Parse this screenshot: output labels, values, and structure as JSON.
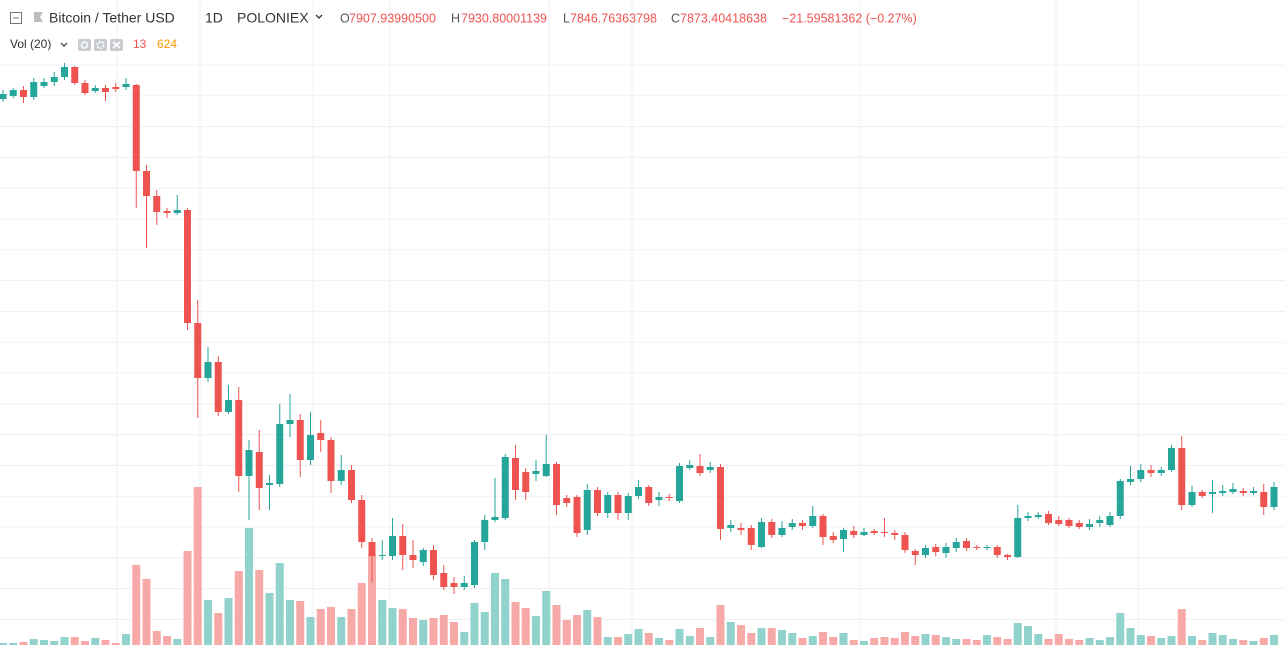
{
  "chart_data": {
    "type": "candlestick",
    "header": {
      "symbol": "Bitcoin / Tether USD",
      "interval": "1D",
      "exchange": "POLONIEX",
      "ohlc": [
        {
          "label": "O",
          "value": "7907.93990500"
        },
        {
          "label": "H",
          "value": "7930.80001139"
        },
        {
          "label": "L",
          "value": "7846.76363798"
        },
        {
          "label": "C",
          "value": "7873.40418638"
        }
      ],
      "change": "−21.59581362 (−0.27%)"
    },
    "volume_legend": {
      "label": "Vol (20)",
      "volume": "13",
      "ma": "624"
    },
    "ylim": [
      3875,
      19125
    ],
    "volume_ylim": [
      0,
      15250
    ],
    "up_color": "#26a69a",
    "down_color": "#ef5350",
    "volume_up_color": "#92d2cc",
    "volume_down_color": "#f7a9a7",
    "open": [
      17525,
      17600,
      17750,
      17575,
      17850,
      17950,
      18075,
      18325,
      17925,
      17725,
      17800,
      17825,
      17825,
      17875,
      15725,
      15100,
      14725,
      14675,
      14750,
      11925,
      10550,
      10950,
      9700,
      10000,
      8100,
      8700,
      7875,
      7900,
      9400,
      9500,
      8500,
      9175,
      9000,
      7975,
      8250,
      7500,
      6450,
      6100,
      6100,
      6600,
      6125,
      5950,
      6250,
      5675,
      5425,
      5325,
      5375,
      6450,
      7000,
      7050,
      8550,
      8200,
      8150,
      8100,
      8400,
      7550,
      7575,
      6750,
      7750,
      7175,
      7625,
      7175,
      7600,
      7825,
      7500,
      7575,
      7475,
      8300,
      8350,
      8250,
      8325,
      6800,
      6800,
      6800,
      6325,
      6950,
      6625,
      6825,
      6925,
      6850,
      7100,
      6600,
      6525,
      6725,
      6625,
      6725,
      6700,
      6675,
      6625,
      6225,
      6125,
      6325,
      6175,
      6300,
      6475,
      6325,
      6300,
      6325,
      6125,
      6075,
      7050,
      7075,
      7150,
      7000,
      7000,
      6925,
      6825,
      6925,
      6875,
      7100,
      7950,
      8025,
      8250,
      8175,
      8250,
      8800,
      7375,
      7700,
      7650,
      7675,
      7700,
      7725,
      7675,
      7700,
      7325
    ],
    "high": [
      17750,
      17800,
      17850,
      18050,
      18050,
      18200,
      18425,
      18350,
      18000,
      17875,
      17875,
      17925,
      18050,
      17900,
      15875,
      15250,
      14800,
      15125,
      14800,
      12500,
      11325,
      11100,
      10375,
      10325,
      9000,
      9250,
      8125,
      9900,
      10150,
      9650,
      9700,
      9500,
      9075,
      8625,
      8375,
      7625,
      6550,
      6500,
      7050,
      6900,
      6500,
      6300,
      6375,
      5875,
      5575,
      5600,
      6500,
      7125,
      8050,
      8650,
      8875,
      8300,
      8500,
      9125,
      8450,
      7625,
      7625,
      7900,
      7825,
      7700,
      7700,
      7675,
      8000,
      7875,
      7700,
      7650,
      8425,
      8500,
      8650,
      8450,
      8400,
      7000,
      6925,
      6875,
      7050,
      7025,
      6975,
      7025,
      7000,
      7350,
      7150,
      6700,
      6800,
      6850,
      6800,
      6775,
      7050,
      6750,
      6700,
      6275,
      6375,
      6400,
      6425,
      6550,
      6550,
      6375,
      6375,
      6375,
      6150,
      7375,
      7200,
      7200,
      7225,
      7100,
      7050,
      7000,
      7025,
      7100,
      7200,
      8025,
      8350,
      8400,
      8375,
      8325,
      8875,
      9100,
      7850,
      7750,
      8000,
      7875,
      7925,
      7800,
      7825,
      7900,
      7950
    ],
    "low": [
      17450,
      17550,
      17425,
      17500,
      17800,
      17850,
      18000,
      17875,
      17625,
      17675,
      17475,
      17700,
      17750,
      14800,
      13800,
      14375,
      14550,
      14625,
      11750,
      9550,
      10450,
      9600,
      9650,
      7700,
      7000,
      7250,
      7250,
      7825,
      9075,
      8075,
      8375,
      8700,
      7675,
      7875,
      7425,
      6300,
      5450,
      6000,
      6000,
      5750,
      5800,
      5850,
      5500,
      5250,
      5150,
      5250,
      5300,
      6250,
      6950,
      7000,
      7500,
      7500,
      7975,
      8075,
      7125,
      7325,
      6575,
      6625,
      7100,
      7050,
      7000,
      7000,
      7525,
      7350,
      7350,
      7475,
      7425,
      8250,
      8100,
      8175,
      6500,
      6700,
      6625,
      6250,
      6300,
      6550,
      6575,
      6750,
      6750,
      6800,
      6375,
      6425,
      6200,
      6550,
      6600,
      6625,
      6575,
      6500,
      6175,
      5875,
      6050,
      6100,
      6050,
      6200,
      6225,
      6250,
      6250,
      6050,
      6000,
      6050,
      6975,
      7025,
      6875,
      6850,
      6800,
      6775,
      6750,
      6825,
      6825,
      7025,
      7875,
      7950,
      8075,
      8100,
      8200,
      7250,
      7325,
      7550,
      7175,
      7600,
      7650,
      7600,
      7625,
      7125,
      7250
    ],
    "close": [
      17650,
      17750,
      17575,
      17950,
      17950,
      18075,
      18325,
      17925,
      17675,
      17800,
      17700,
      17775,
      17900,
      15725,
      15100,
      14700,
      14675,
      14750,
      11925,
      10550,
      10950,
      9700,
      10000,
      8100,
      8750,
      7800,
      7925,
      9400,
      9500,
      8500,
      9125,
      9000,
      7975,
      8250,
      7500,
      6450,
      6100,
      6125,
      6600,
      6125,
      6000,
      6250,
      5625,
      5325,
      5325,
      5425,
      6450,
      7000,
      7075,
      8575,
      7750,
      7700,
      8225,
      8400,
      7375,
      7425,
      6675,
      7750,
      7175,
      7625,
      7175,
      7600,
      7825,
      7425,
      7575,
      7550,
      8350,
      8375,
      8175,
      8325,
      6775,
      6875,
      6750,
      6375,
      6950,
      6625,
      6800,
      6925,
      6850,
      7100,
      6575,
      6500,
      6750,
      6625,
      6700,
      6675,
      6675,
      6625,
      6250,
      6125,
      6300,
      6200,
      6325,
      6450,
      6300,
      6300,
      6325,
      6125,
      6075,
      7050,
      7100,
      7125,
      6925,
      6900,
      6850,
      6825,
      6900,
      7000,
      7100,
      7975,
      8025,
      8250,
      8175,
      8250,
      8800,
      7375,
      7700,
      7600,
      7700,
      7725,
      7775,
      7675,
      7725,
      7325,
      7825
    ],
    "volume": [
      50,
      50,
      75,
      150,
      125,
      100,
      200,
      200,
      100,
      175,
      125,
      50,
      275,
      2000,
      1650,
      350,
      225,
      150,
      2350,
      3950,
      1125,
      800,
      1175,
      1850,
      2925,
      1875,
      1300,
      2050,
      1125,
      1100,
      700,
      900,
      950,
      700,
      900,
      1550,
      2250,
      1125,
      925,
      900,
      675,
      625,
      675,
      750,
      575,
      325,
      1050,
      825,
      1800,
      1650,
      1075,
      925,
      725,
      1350,
      1000,
      625,
      750,
      875,
      700,
      200,
      200,
      275,
      400,
      300,
      175,
      125,
      400,
      225,
      425,
      200,
      1000,
      575,
      500,
      300,
      425,
      425,
      375,
      300,
      175,
      225,
      325,
      200,
      300,
      125,
      100,
      175,
      200,
      175,
      325,
      225,
      275,
      250,
      200,
      150,
      150,
      125,
      250,
      200,
      150,
      550,
      475,
      275,
      150,
      275,
      150,
      125,
      175,
      125,
      200,
      800,
      425,
      250,
      225,
      175,
      225,
      900,
      225,
      125,
      300,
      250,
      150,
      125,
      100,
      175,
      250
    ]
  }
}
